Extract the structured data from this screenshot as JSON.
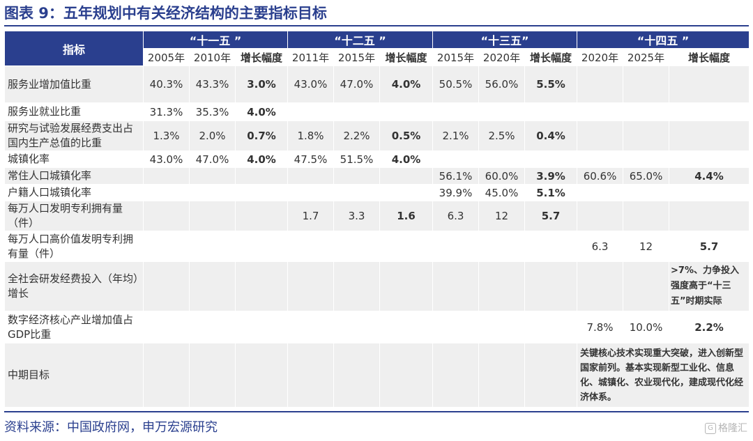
{
  "title": "图表 9：五年规划中有关经济结构的主要指标目标",
  "header": {
    "indicator": "指标",
    "plans": [
      "“十一五 ”",
      "“十二五 ”",
      "“十三五”",
      "“十四五 ”"
    ],
    "years": [
      "2005年",
      "2010年",
      "增长幅度",
      "2011年",
      "2015年",
      "增长幅度",
      "2015年",
      "2020年",
      "增长幅度",
      "2020年",
      "2025年",
      "增长幅度"
    ]
  },
  "rows": [
    {
      "label": "服务业增加值比重",
      "cells": [
        "40.3%",
        "43.3%",
        "3.0%",
        "43.0%",
        "47.0%",
        "4.0%",
        "50.5%",
        "56.0%",
        "5.5%",
        "",
        "",
        ""
      ]
    },
    {
      "label": "服务业就业比重",
      "cells": [
        "31.3%",
        "35.3%",
        "4.0%",
        "",
        "",
        "",
        "",
        "",
        "",
        "",
        "",
        ""
      ]
    },
    {
      "label": "研究与试验发展经费支出占国内生产总值的比重",
      "cells": [
        "1.3%",
        "2.0%",
        "0.7%",
        "1.8%",
        "2.2%",
        "0.5%",
        "2.1%",
        "2.5%",
        "0.4%",
        "",
        "",
        ""
      ]
    },
    {
      "label": "城镇化率",
      "cells": [
        "43.0%",
        "47.0%",
        "4.0%",
        "47.5%",
        "51.5%",
        "4.0%",
        "",
        "",
        "",
        "",
        "",
        ""
      ]
    },
    {
      "label": "常住人口城镇化率",
      "cells": [
        "",
        "",
        "",
        "",
        "",
        "",
        "56.1%",
        "60.0%",
        "3.9%",
        "60.6%",
        "65.0%",
        "4.4%"
      ]
    },
    {
      "label": "户籍人口城镇化率",
      "cells": [
        "",
        "",
        "",
        "",
        "",
        "",
        "39.9%",
        "45.0%",
        "5.1%",
        "",
        "",
        ""
      ]
    },
    {
      "label": "每万人口发明专利拥有量（件）",
      "cells": [
        "",
        "",
        "",
        "1.7",
        "3.3",
        "1.6",
        "6.3",
        "12",
        "5.7",
        "",
        "",
        ""
      ]
    },
    {
      "label": "每万人口高价值发明专利拥有量（件）",
      "cells": [
        "",
        "",
        "",
        "",
        "",
        "",
        "",
        "",
        "",
        "6.3",
        "12",
        "5.7"
      ]
    },
    {
      "label": "全社会研发经费投入（年均）增长",
      "cells": [
        "",
        "",
        "",
        "",
        "",
        "",
        "",
        "",
        "",
        "",
        "",
        ">7%、力争投入强度高于“十三五”时期实际"
      ]
    },
    {
      "label": "数字经济核心产业增加值占GDP比重",
      "cells": [
        "",
        "",
        "",
        "",
        "",
        "",
        "",
        "",
        "",
        "7.8%",
        "10.0%",
        "2.2%"
      ]
    }
  ],
  "goal": {
    "label": "中期目标",
    "text": "关键核心技术实现重大突破，进入创新型国家前列。基本实现新型工业化、信息化、城镇化、农业现代化，建成现代化经济体系。"
  },
  "source": "资料来源：中国政府网，申万宏源研究",
  "watermark": "格隆汇",
  "watermark_icon_glyph": "G",
  "colors": {
    "brand_blue": "#2a3f8e",
    "row_shade": "#efefef",
    "watermark_gray": "#b5b5b5"
  }
}
